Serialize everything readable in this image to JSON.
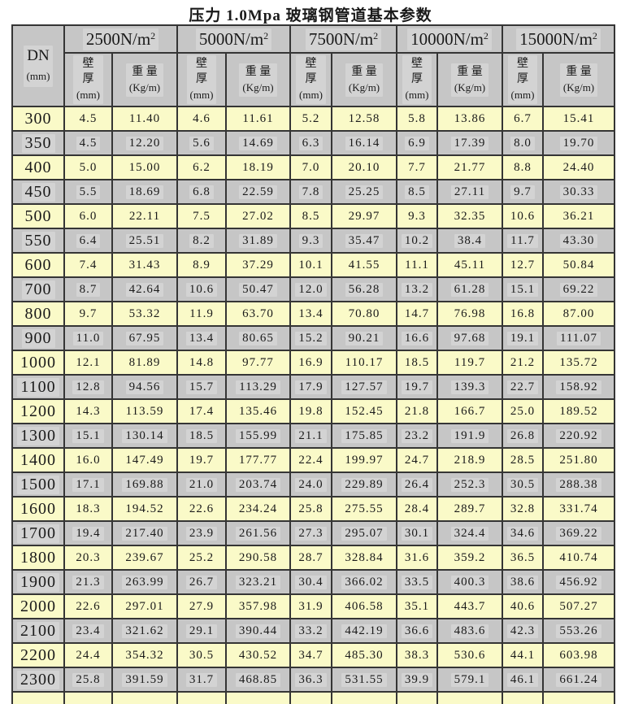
{
  "title": "压力 1.0Mpa 玻璃钢管道基本参数",
  "table": {
    "dn_header_lines": [
      "DN",
      "(mm)"
    ],
    "pressure_groups": [
      {
        "label": "2500N/m",
        "exp": "2"
      },
      {
        "label": "5000N/m",
        "exp": "2"
      },
      {
        "label": "7500N/m",
        "exp": "2"
      },
      {
        "label": "10000N/m",
        "exp": "2"
      },
      {
        "label": "15000N/m",
        "exp": "2"
      }
    ],
    "wall_header_lines": [
      "壁",
      "厚",
      "(mm)"
    ],
    "weight_header_lines": [
      "重 量",
      "(Kg/m)"
    ],
    "colors": {
      "row_yellow": "#fafac8",
      "row_gray": "#c6c6c6",
      "cell_highlight": "#d3d3d3",
      "border": "#353535"
    },
    "rows": [
      {
        "dn": "300",
        "values": [
          "4.5",
          "11.40",
          "4.6",
          "11.61",
          "5.2",
          "12.58",
          "5.8",
          "13.86",
          "6.7",
          "15.41"
        ]
      },
      {
        "dn": "350",
        "values": [
          "4.5",
          "12.20",
          "5.6",
          "14.69",
          "6.3",
          "16.14",
          "6.9",
          "17.39",
          "8.0",
          "19.70"
        ]
      },
      {
        "dn": "400",
        "values": [
          "5.0",
          "15.00",
          "6.2",
          "18.19",
          "7.0",
          "20.10",
          "7.7",
          "21.77",
          "8.8",
          "24.40"
        ]
      },
      {
        "dn": "450",
        "values": [
          "5.5",
          "18.69",
          "6.8",
          "22.59",
          "7.8",
          "25.25",
          "8.5",
          "27.11",
          "9.7",
          "30.33"
        ]
      },
      {
        "dn": "500",
        "values": [
          "6.0",
          "22.11",
          "7.5",
          "27.02",
          "8.5",
          "29.97",
          "9.3",
          "32.35",
          "10.6",
          "36.21"
        ]
      },
      {
        "dn": "550",
        "values": [
          "6.4",
          "25.51",
          "8.2",
          "31.89",
          "9.3",
          "35.47",
          "10.2",
          "38.4",
          "11.7",
          "43.30"
        ]
      },
      {
        "dn": "600",
        "values": [
          "7.4",
          "31.43",
          "8.9",
          "37.29",
          "10.1",
          "41.55",
          "11.1",
          "45.11",
          "12.7",
          "50.84"
        ]
      },
      {
        "dn": "700",
        "values": [
          "8.7",
          "42.64",
          "10.6",
          "50.47",
          "12.0",
          "56.28",
          "13.2",
          "61.28",
          "15.1",
          "69.22"
        ]
      },
      {
        "dn": "800",
        "values": [
          "9.7",
          "53.32",
          "11.9",
          "63.70",
          "13.4",
          "70.80",
          "14.7",
          "76.98",
          "16.8",
          "87.00"
        ]
      },
      {
        "dn": "900",
        "values": [
          "11.0",
          "67.95",
          "13.4",
          "80.65",
          "15.2",
          "90.21",
          "16.6",
          "97.68",
          "19.1",
          "111.07"
        ]
      },
      {
        "dn": "1000",
        "values": [
          "12.1",
          "81.89",
          "14.8",
          "97.77",
          "16.9",
          "110.17",
          "18.5",
          "119.7",
          "21.2",
          "135.72"
        ]
      },
      {
        "dn": "1100",
        "values": [
          "12.8",
          "94.56",
          "15.7",
          "113.29",
          "17.9",
          "127.57",
          "19.7",
          "139.3",
          "22.7",
          "158.92"
        ]
      },
      {
        "dn": "1200",
        "values": [
          "14.3",
          "113.59",
          "17.4",
          "135.46",
          "19.8",
          "152.45",
          "21.8",
          "166.7",
          "25.0",
          "189.52"
        ]
      },
      {
        "dn": "1300",
        "values": [
          "15.1",
          "130.14",
          "18.5",
          "155.99",
          "21.1",
          "175.85",
          "23.2",
          "191.9",
          "26.8",
          "220.92"
        ]
      },
      {
        "dn": "1400",
        "values": [
          "16.0",
          "147.49",
          "19.7",
          "177.77",
          "22.4",
          "199.97",
          "24.7",
          "218.9",
          "28.5",
          "251.80"
        ]
      },
      {
        "dn": "1500",
        "values": [
          "17.1",
          "169.88",
          "21.0",
          "203.74",
          "24.0",
          "229.89",
          "26.4",
          "252.3",
          "30.5",
          "288.38"
        ]
      },
      {
        "dn": "1600",
        "values": [
          "18.3",
          "194.52",
          "22.6",
          "234.24",
          "25.8",
          "275.55",
          "28.4",
          "289.7",
          "32.8",
          "331.74"
        ]
      },
      {
        "dn": "1700",
        "values": [
          "19.4",
          "217.40",
          "23.9",
          "261.56",
          "27.3",
          "295.07",
          "30.1",
          "324.4",
          "34.6",
          "369.22"
        ]
      },
      {
        "dn": "1800",
        "values": [
          "20.3",
          "239.67",
          "25.2",
          "290.58",
          "28.7",
          "328.84",
          "31.6",
          "359.2",
          "36.5",
          "410.74"
        ]
      },
      {
        "dn": "1900",
        "values": [
          "21.3",
          "263.99",
          "26.7",
          "323.21",
          "30.4",
          "366.02",
          "33.5",
          "400.3",
          "38.6",
          "456.92"
        ]
      },
      {
        "dn": "2000",
        "values": [
          "22.6",
          "297.01",
          "27.9",
          "357.98",
          "31.9",
          "406.58",
          "35.1",
          "443.7",
          "40.6",
          "507.27"
        ]
      },
      {
        "dn": "2100",
        "values": [
          "23.4",
          "321.62",
          "29.1",
          "390.44",
          "33.2",
          "442.19",
          "36.6",
          "483.6",
          "42.3",
          "553.26"
        ]
      },
      {
        "dn": "2200",
        "values": [
          "24.4",
          "354.32",
          "30.5",
          "430.52",
          "34.7",
          "485.30",
          "38.3",
          "530.6",
          "44.1",
          "603.98"
        ]
      },
      {
        "dn": "2300",
        "values": [
          "25.8",
          "391.59",
          "31.7",
          "468.85",
          "36.3",
          "531.55",
          "39.9",
          "579.1",
          "46.1",
          "661.24"
        ]
      }
    ]
  }
}
